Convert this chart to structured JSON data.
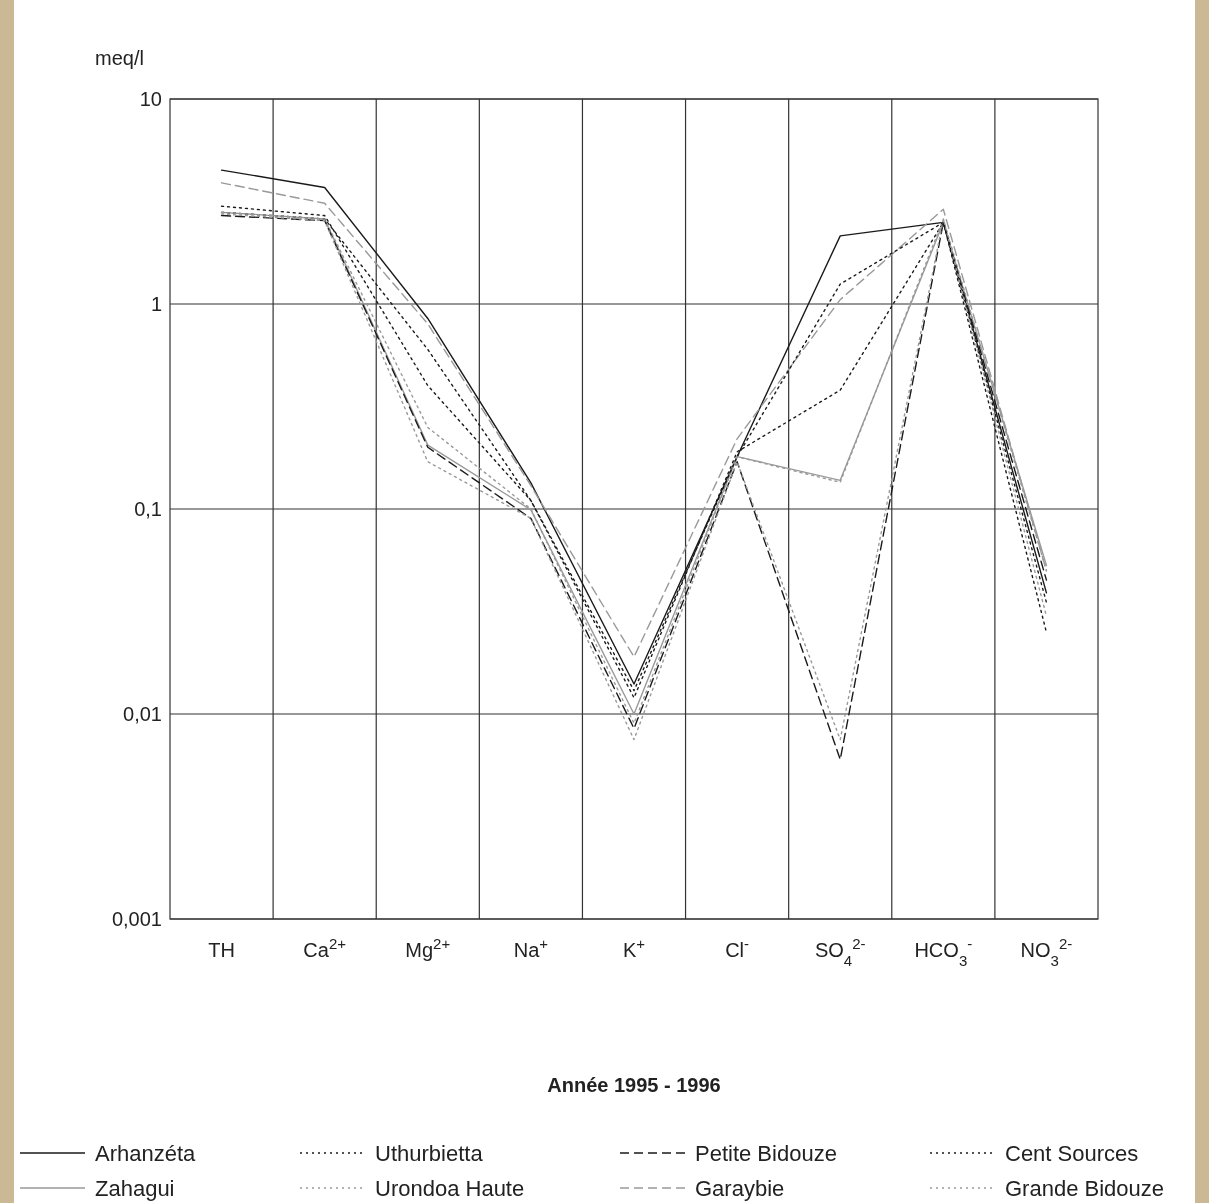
{
  "chart_data": {
    "type": "line",
    "title": "Année 1995 - 1996",
    "ylabel": "meq/l",
    "categories": [
      "TH",
      "Ca$^{2+}$",
      "Mg$^{2+}$",
      "Na$^{+}$",
      "K$^{+}$",
      "Cl$^{-}$",
      "SO$_{4}$$^{2-}$",
      "HCO$_{3}$$^{-}$",
      "NO$_{3}$$^{2-}$"
    ],
    "series": [
      {
        "name": "Arhanzéta",
        "color": "#1a1a1a",
        "line_style": "solid",
        "values": [
          4.5,
          3.7,
          0.85,
          0.134,
          0.014,
          0.18,
          2.15,
          2.5,
          0.039
        ]
      },
      {
        "name": "Zahagui",
        "color": "#999999",
        "line_style": "solid",
        "values": [
          2.8,
          2.6,
          0.205,
          0.099,
          0.01,
          0.18,
          0.138,
          2.5,
          0.053
        ]
      },
      {
        "name": "Uthurbietta",
        "color": "#1a1a1a",
        "line_style": "dotted",
        "values": [
          2.8,
          2.6,
          0.6,
          0.11,
          0.012,
          0.19,
          0.38,
          2.5,
          0.035
        ]
      },
      {
        "name": "Urondoa Haute",
        "color": "#999999",
        "line_style": "dotted",
        "values": [
          2.8,
          2.6,
          0.25,
          0.1,
          0.009,
          0.18,
          0.135,
          2.6,
          0.05
        ]
      },
      {
        "name": "Petite Bidouze",
        "color": "#1a1a1a",
        "line_style": "dashed",
        "values": [
          2.7,
          2.55,
          0.2,
          0.09,
          0.0085,
          0.17,
          0.006,
          2.5,
          0.045
        ]
      },
      {
        "name": "Garaybie",
        "color": "#999999",
        "line_style": "dashed",
        "values": [
          3.9,
          3.1,
          0.8,
          0.13,
          0.019,
          0.22,
          1.05,
          2.9,
          0.05
        ]
      },
      {
        "name": "Cent Sources",
        "color": "#1a1a1a",
        "line_style": "dotted",
        "values": [
          3.0,
          2.7,
          0.4,
          0.11,
          0.013,
          0.18,
          1.25,
          2.5,
          0.025
        ]
      },
      {
        "name": "Grande Bidouze",
        "color": "#999999",
        "line_style": "dotted",
        "values": [
          2.75,
          2.55,
          0.17,
          0.09,
          0.0075,
          0.17,
          0.0075,
          2.6,
          0.03
        ]
      }
    ],
    "log": "y",
    "ylim": [
      0.001,
      10
    ],
    "yticks": [
      {
        "value": 0.001,
        "label": "0,001"
      },
      {
        "value": 0.01,
        "label": "0,01"
      },
      {
        "value": 0.1,
        "label": "0,1"
      },
      1,
      10
    ],
    "grid": true,
    "legend": "bottom"
  }
}
